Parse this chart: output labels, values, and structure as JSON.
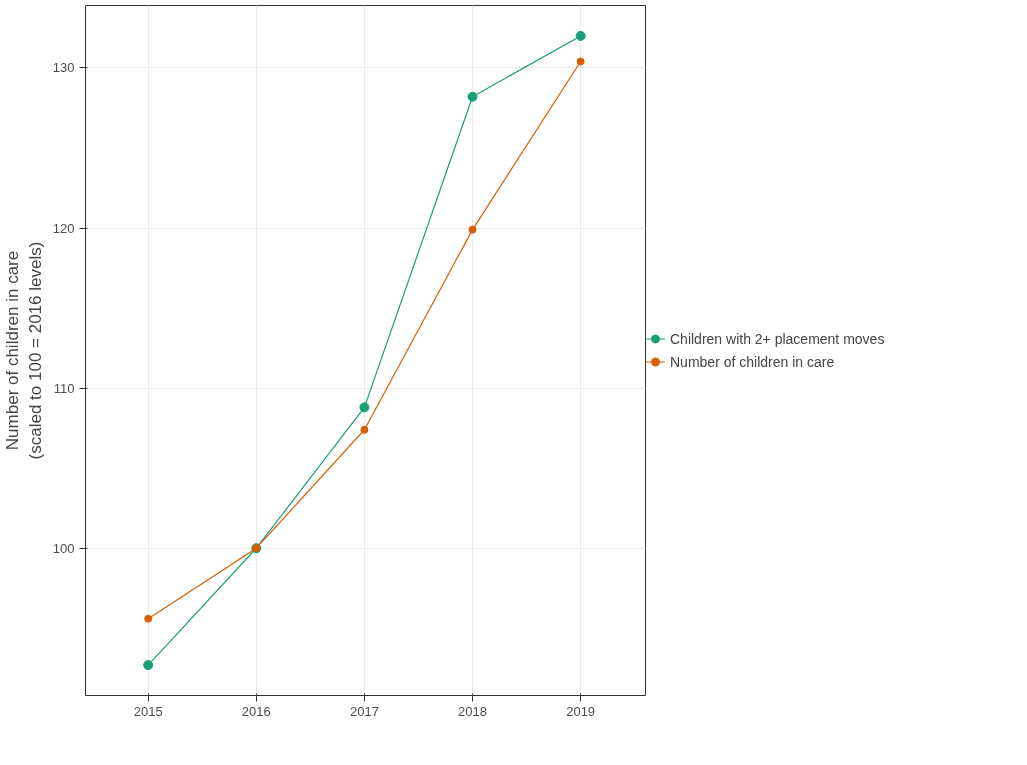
{
  "chart_data": {
    "type": "line",
    "ylabel": "Number of children in care\n(scaled to 100 = 2016 levels)",
    "x": [
      2015,
      2016,
      2017,
      2018,
      2019
    ],
    "series": [
      {
        "name": "Children with 2+ placement moves",
        "color": "#1b9e77",
        "values": [
          92.7,
          100,
          108.8,
          128.2,
          132
        ]
      },
      {
        "name": "Number of children in care",
        "color": "#d95f02",
        "values": [
          95.6,
          100,
          107.4,
          119.9,
          130.4
        ]
      }
    ],
    "xlim": [
      2014.42,
      2019.6
    ],
    "ylim": [
      90.8,
      133.9
    ],
    "xticks": [
      2015,
      2016,
      2017,
      2018,
      2019
    ],
    "yticks": [
      100,
      110,
      120,
      130
    ],
    "grid": true,
    "legend": "right",
    "marker": "circle",
    "line_style": "solid"
  }
}
